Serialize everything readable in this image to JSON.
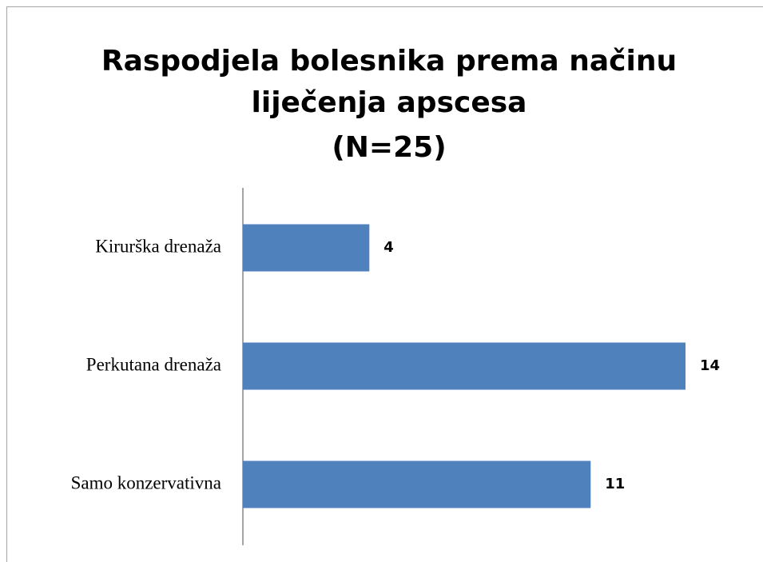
{
  "chart_data": {
    "type": "bar",
    "orientation": "horizontal",
    "title": [
      "Raspodjela bolesnika prema načinu",
      "liječenja apscesa",
      "(N=25)"
    ],
    "categories": [
      "Kirurška drenaža",
      "Perkutana drenaža",
      "Samo konzervativna"
    ],
    "values": [
      4,
      14,
      11
    ],
    "color": "#4f81bd"
  }
}
